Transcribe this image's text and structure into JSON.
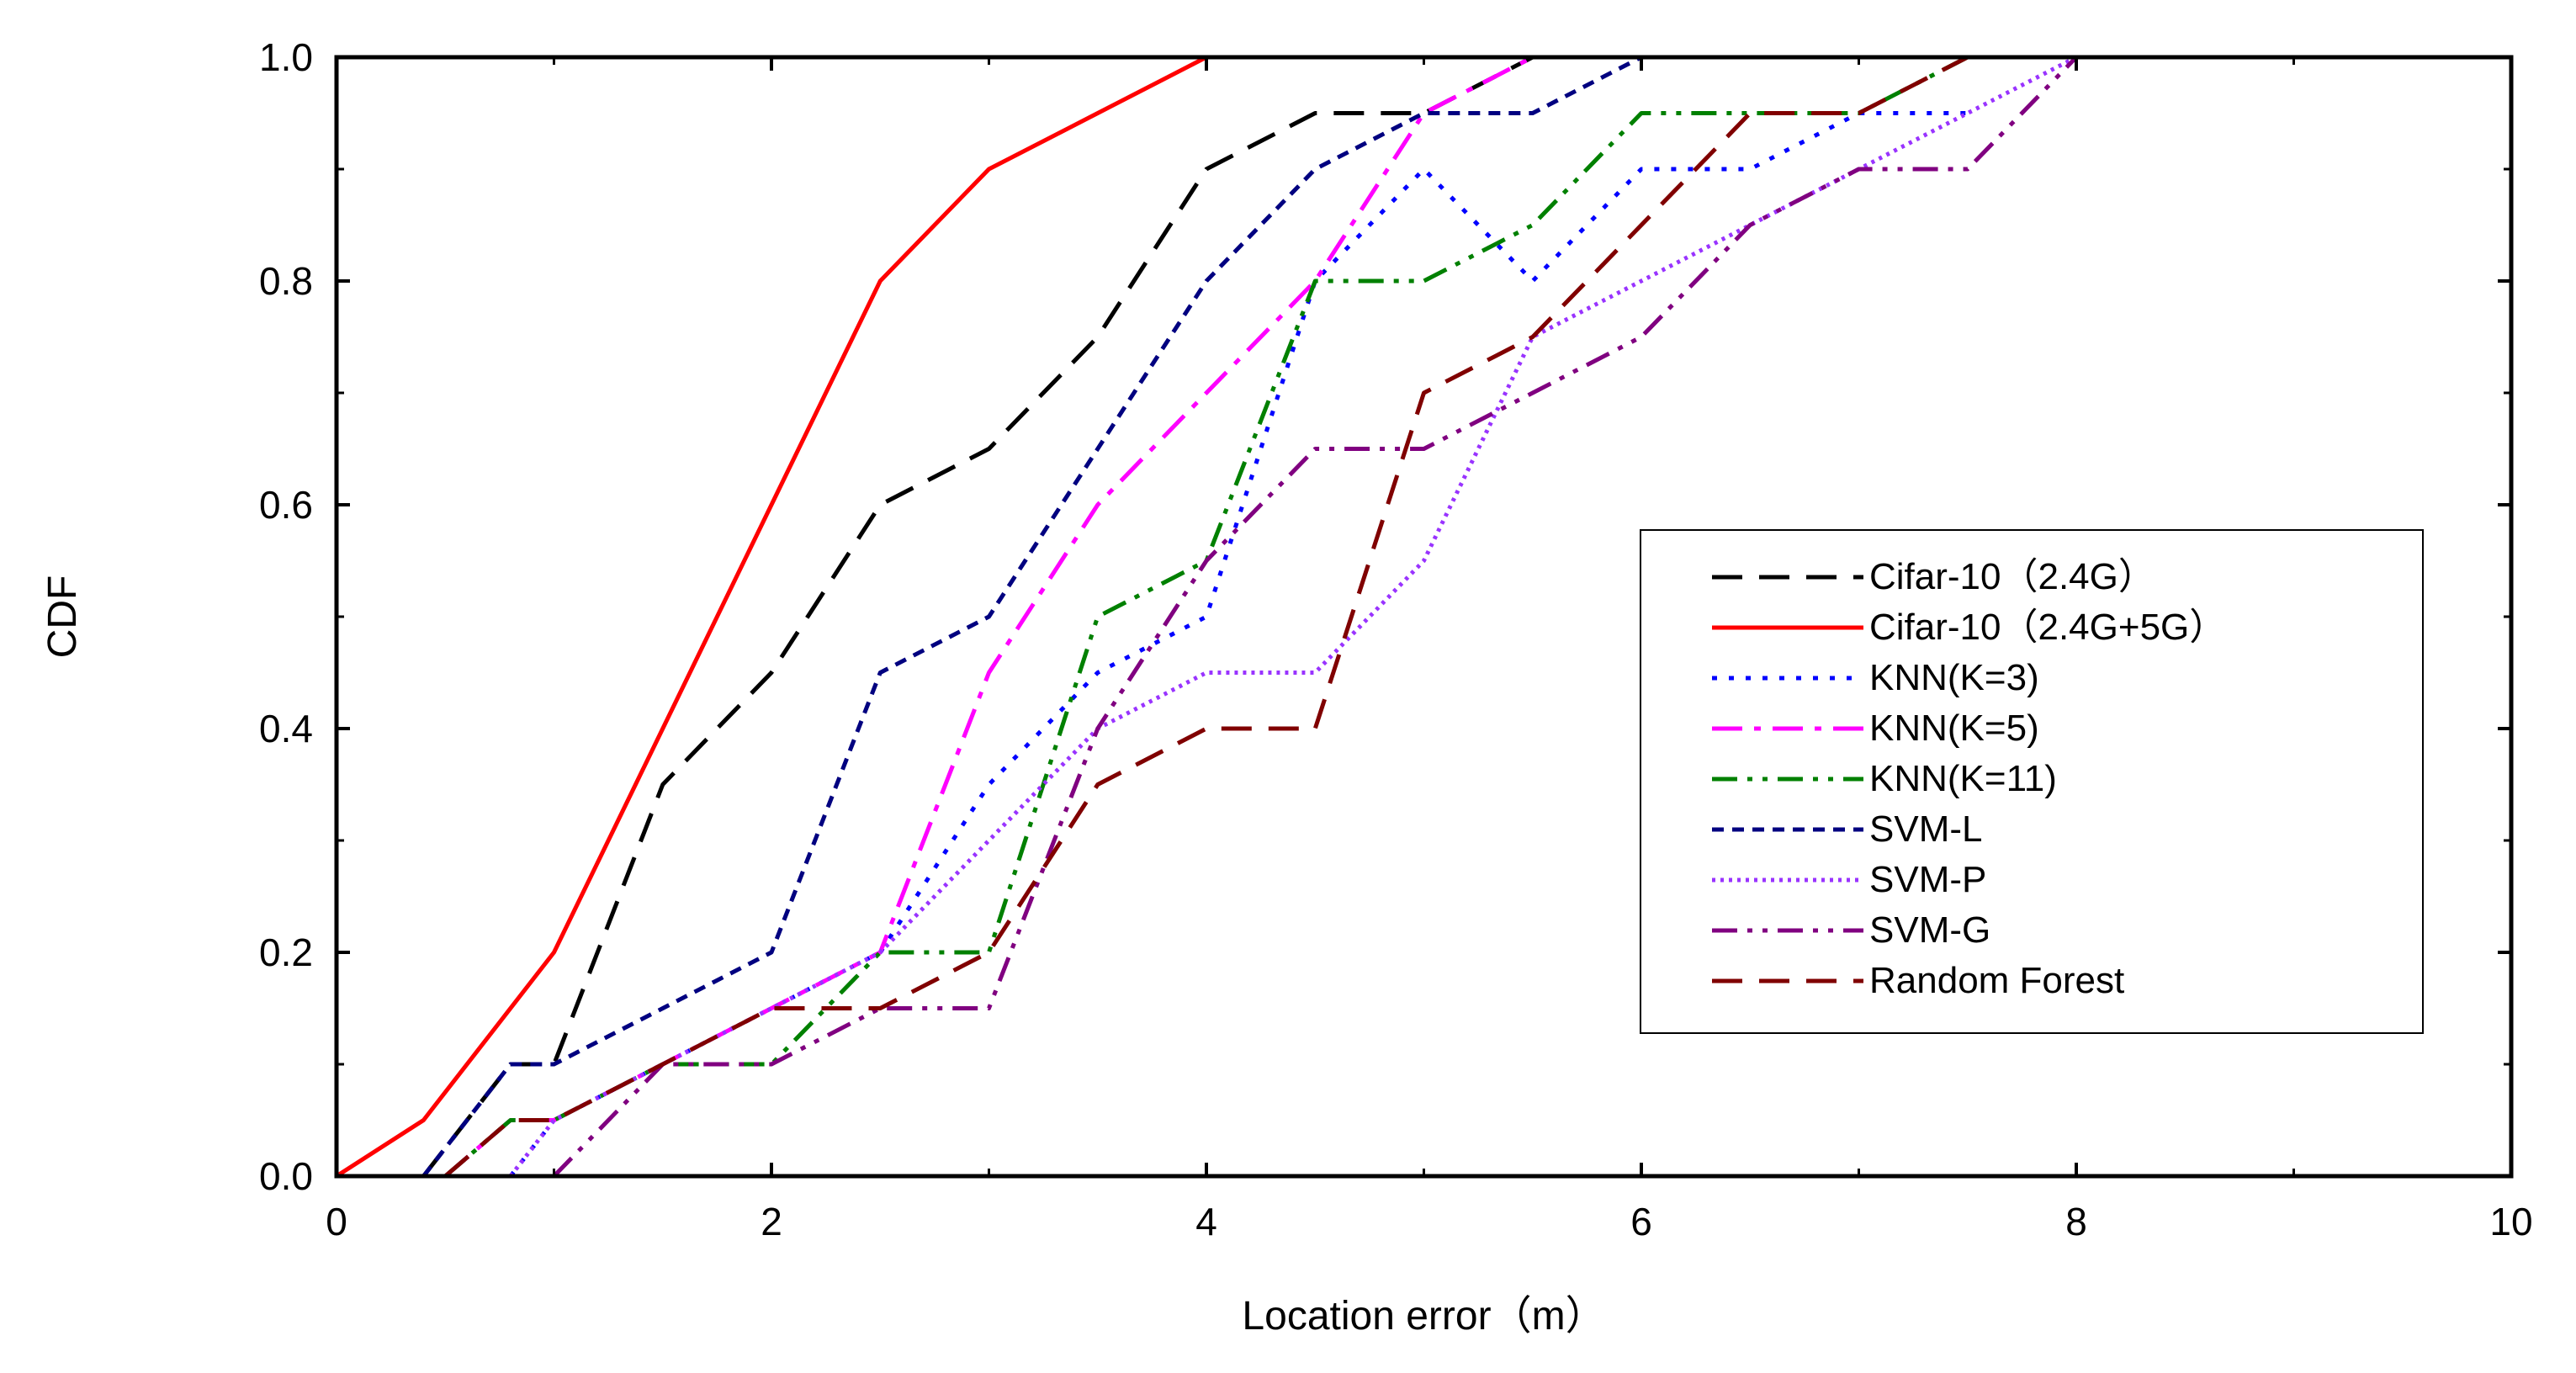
{
  "chart_data": {
    "type": "line",
    "title": "",
    "xlabel": "Location error（m）",
    "ylabel": "CDF",
    "xlim": [
      0,
      10
    ],
    "ylim": [
      0,
      1.0
    ],
    "grid": false,
    "legend_position": "right-center",
    "x_ticks": [
      0,
      2,
      4,
      6,
      8,
      10
    ],
    "x_tick_labels": [
      "0",
      "2",
      "4",
      "6",
      "8",
      "10"
    ],
    "y_ticks": [
      0.0,
      0.2,
      0.4,
      0.6,
      0.8,
      1.0
    ],
    "y_tick_labels": [
      "0.0",
      "0.2",
      "0.4",
      "0.6",
      "0.8",
      "1.0"
    ],
    "series": [
      {
        "name": "Cifar-10（2.4G）",
        "color": "#000000",
        "dash": "dash",
        "x": [
          0.4,
          0.8,
          1.0,
          1.5,
          2.0,
          2.5,
          3.0,
          3.5,
          4.0,
          4.5,
          5.0,
          5.5
        ],
        "y": [
          0.0,
          0.1,
          0.1,
          0.35,
          0.45,
          0.6,
          0.65,
          0.75,
          0.9,
          0.95,
          0.95,
          1.0
        ]
      },
      {
        "name": "Cifar-10（2.4G+5G）",
        "color": "#ff0000",
        "dash": "solid",
        "x": [
          0.0,
          0.4,
          1.0,
          1.5,
          2.0,
          2.5,
          3.0,
          3.5,
          4.0,
          5.0
        ],
        "y": [
          0.0,
          0.05,
          0.2,
          0.4,
          0.6,
          0.8,
          0.9,
          0.95,
          1.0,
          1.0
        ]
      },
      {
        "name": "KNN(K=3)",
        "color": "#0000ff",
        "dash": "dot",
        "x": [
          0.8,
          1.0,
          1.5,
          2.0,
          2.5,
          3.0,
          3.5,
          4.0,
          4.5,
          5.0,
          5.5,
          6.0,
          6.5,
          7.0,
          7.5
        ],
        "y": [
          0.0,
          0.05,
          0.1,
          0.15,
          0.2,
          0.35,
          0.45,
          0.5,
          0.8,
          0.9,
          0.8,
          0.9,
          0.9,
          0.95,
          0.95
        ]
      },
      {
        "name": "KNN(K=5)",
        "color": "#ff00ff",
        "dash": "dashdot",
        "x": [
          0.5,
          0.8,
          1.0,
          1.5,
          2.0,
          2.5,
          3.0,
          3.5,
          4.0,
          4.5,
          5.0,
          5.5
        ],
        "y": [
          0.0,
          0.05,
          0.05,
          0.1,
          0.15,
          0.2,
          0.45,
          0.6,
          0.7,
          0.8,
          0.95,
          1.0
        ]
      },
      {
        "name": "KNN(K=11)",
        "color": "#008000",
        "dash": "dashdotdot",
        "x": [
          0.5,
          0.8,
          1.0,
          1.5,
          2.0,
          2.5,
          3.0,
          3.5,
          4.0,
          4.5,
          5.0,
          5.5,
          6.0,
          6.5,
          7.0,
          7.5
        ],
        "y": [
          0.0,
          0.05,
          0.05,
          0.1,
          0.1,
          0.2,
          0.2,
          0.5,
          0.55,
          0.8,
          0.8,
          0.85,
          0.95,
          0.95,
          0.95,
          1.0
        ]
      },
      {
        "name": "SVM-L",
        "color": "#000080",
        "dash": "shortdash",
        "x": [
          0.4,
          0.8,
          1.0,
          1.5,
          2.0,
          2.5,
          3.0,
          3.5,
          4.0,
          4.5,
          5.0,
          5.5,
          6.0
        ],
        "y": [
          0.0,
          0.1,
          0.1,
          0.15,
          0.2,
          0.45,
          0.5,
          0.65,
          0.8,
          0.9,
          0.95,
          0.95,
          1.0
        ]
      },
      {
        "name": "SVM-P",
        "color": "#9933ff",
        "dash": "shortdot",
        "x": [
          0.8,
          1.0,
          1.5,
          2.0,
          2.5,
          3.0,
          3.5,
          4.0,
          4.5,
          5.0,
          5.5,
          6.0,
          6.5,
          7.0,
          7.5,
          8.0
        ],
        "y": [
          0.0,
          0.05,
          0.1,
          0.15,
          0.2,
          0.3,
          0.4,
          0.45,
          0.45,
          0.55,
          0.75,
          0.8,
          0.85,
          0.9,
          0.95,
          1.0
        ]
      },
      {
        "name": "SVM-G",
        "color": "#800080",
        "dash": "dashdotdot",
        "x": [
          1.0,
          1.5,
          2.0,
          2.5,
          3.0,
          3.5,
          4.0,
          4.5,
          5.0,
          5.5,
          6.0,
          6.5,
          7.0,
          7.5,
          8.0
        ],
        "y": [
          0.0,
          0.1,
          0.1,
          0.15,
          0.15,
          0.4,
          0.55,
          0.65,
          0.65,
          0.7,
          0.75,
          0.85,
          0.9,
          0.9,
          1.0
        ]
      },
      {
        "name": "Random Forest",
        "color": "#800000",
        "dash": "dash",
        "x": [
          0.5,
          0.8,
          1.0,
          1.5,
          2.0,
          2.5,
          3.0,
          3.5,
          4.0,
          4.5,
          5.0,
          5.5,
          6.0,
          6.5,
          7.0,
          7.5,
          8.0
        ],
        "y": [
          0.0,
          0.05,
          0.05,
          0.1,
          0.15,
          0.15,
          0.2,
          0.35,
          0.4,
          0.4,
          0.7,
          0.75,
          0.85,
          0.95,
          0.95,
          1.0,
          1.0
        ]
      }
    ]
  }
}
